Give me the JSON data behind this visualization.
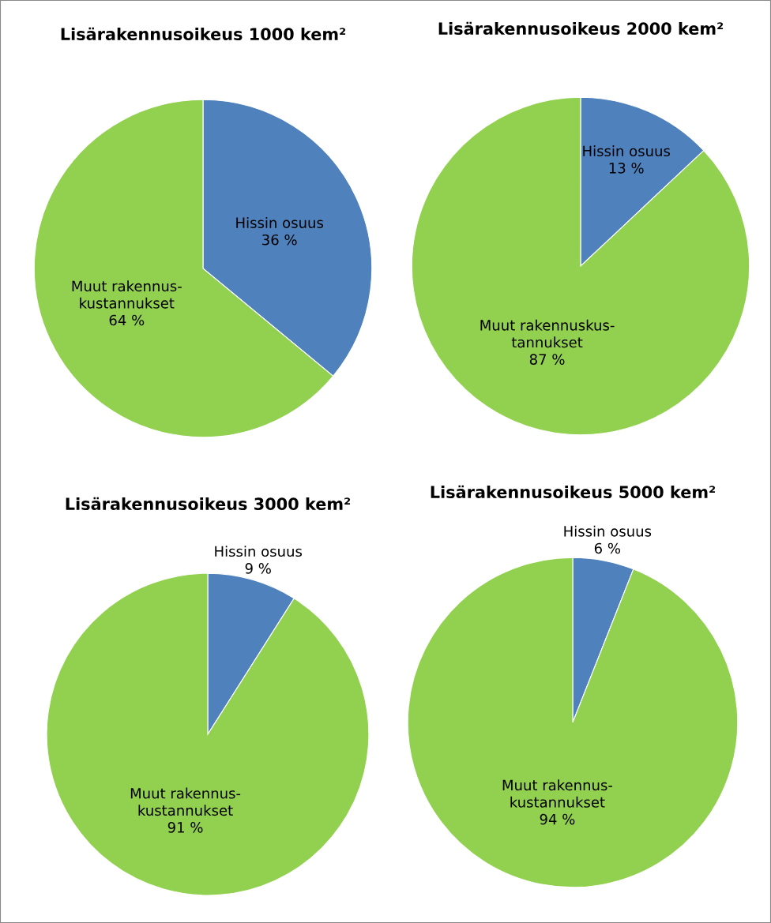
{
  "chart_data": [
    {
      "type": "pie",
      "title": "Lisärakennusoikeus 1000 kem²",
      "categories": [
        "Hissin osuus",
        "Muut rakennus-\nkustannukset"
      ],
      "values": [
        36,
        64
      ],
      "colors": [
        "#4f81bd",
        "#92d050"
      ],
      "value_labels": [
        "36 %",
        "64 %"
      ]
    },
    {
      "type": "pie",
      "title": "Lisärakennusoikeus 2000 kem²",
      "categories": [
        "Hissin osuus",
        "Muut rakennuskus-\ntannukset"
      ],
      "values": [
        13,
        87
      ],
      "colors": [
        "#4f81bd",
        "#92d050"
      ],
      "value_labels": [
        "13 %",
        "87 %"
      ]
    },
    {
      "type": "pie",
      "title": "Lisärakennusoikeus 3000 kem²",
      "categories": [
        "Hissin osuus",
        "Muut rakennus-\nkustannukset"
      ],
      "values": [
        9,
        91
      ],
      "colors": [
        "#4f81bd",
        "#92d050"
      ],
      "value_labels": [
        "9 %",
        "91 %"
      ]
    },
    {
      "type": "pie",
      "title": "Lisärakennusoikeus 5000 kem²",
      "categories": [
        "Hissin osuus",
        "Muut rakennus-\nkustannukset"
      ],
      "values": [
        6,
        94
      ],
      "colors": [
        "#4f81bd",
        "#92d050"
      ],
      "value_labels": [
        "6 %",
        "94 %"
      ]
    }
  ]
}
